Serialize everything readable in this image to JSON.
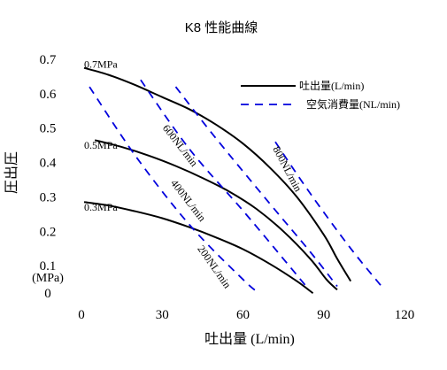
{
  "chart_data": {
    "type": "line",
    "title": "K8 性能曲線",
    "xlabel": "吐出量 (L/min)",
    "ylabel": "圧出圧",
    "ylabel_unit": "(MPa)",
    "xlim": [
      0,
      120
    ],
    "ylim": [
      0,
      0.7
    ],
    "xticks": [
      "0",
      "30",
      "60",
      "90",
      "120"
    ],
    "yticks": [
      "0",
      "0.1",
      "0.2",
      "0.3",
      "0.4",
      "0.5",
      "0.6",
      "0.7"
    ],
    "legend": [
      {
        "label": "吐出量(L/min)",
        "style": "solid"
      },
      {
        "label": "空気消費量(NL/min)",
        "style": "dashed"
      }
    ],
    "colors": {
      "solid": "#000000",
      "dashed": "#0000dd"
    },
    "series": [
      {
        "name": "0.7MPa",
        "style": "solid",
        "x": [
          1,
          10,
          20,
          30,
          40,
          50,
          60,
          70,
          80,
          90,
          95,
          100
        ],
        "y": [
          0.675,
          0.655,
          0.625,
          0.59,
          0.555,
          0.51,
          0.455,
          0.385,
          0.3,
          0.19,
          0.12,
          0.055
        ]
      },
      {
        "name": "0.5MPa",
        "style": "solid",
        "x": [
          5,
          15,
          25,
          35,
          45,
          55,
          65,
          75,
          85,
          91,
          95
        ],
        "y": [
          0.465,
          0.445,
          0.42,
          0.39,
          0.355,
          0.315,
          0.265,
          0.2,
          0.12,
          0.06,
          0.03
        ]
      },
      {
        "name": "0.3MPa",
        "style": "solid",
        "x": [
          1,
          10,
          20,
          30,
          40,
          50,
          60,
          70,
          80,
          86
        ],
        "y": [
          0.285,
          0.275,
          0.258,
          0.238,
          0.212,
          0.182,
          0.148,
          0.105,
          0.055,
          0.02
        ]
      },
      {
        "name": "200NL/min",
        "style": "dashed",
        "x": [
          3,
          20,
          40,
          60,
          66
        ],
        "y": [
          0.62,
          0.42,
          0.22,
          0.06,
          0.02
        ]
      },
      {
        "name": "400NL/min",
        "style": "dashed",
        "x": [
          22,
          40,
          60,
          75,
          84
        ],
        "y": [
          0.64,
          0.44,
          0.26,
          0.12,
          0.035
        ]
      },
      {
        "name": "600NL/min",
        "style": "dashed",
        "x": [
          35,
          50,
          70,
          85,
          95
        ],
        "y": [
          0.62,
          0.47,
          0.28,
          0.14,
          0.04
        ]
      },
      {
        "name": "800NL/min",
        "style": "dashed",
        "x": [
          72,
          85,
          100,
          112
        ],
        "y": [
          0.46,
          0.31,
          0.15,
          0.035
        ]
      }
    ],
    "annotations": [
      {
        "text": "0.7MPa",
        "x": 1,
        "y": 0.675
      },
      {
        "text": "0.5MPa",
        "x": 1,
        "y": 0.44
      },
      {
        "text": "0.3MPa",
        "x": 1,
        "y": 0.26
      },
      {
        "text": "200NL/min",
        "x": 43,
        "y": 0.15,
        "rotate": 55
      },
      {
        "text": "400NL/min",
        "x": 33,
        "y": 0.34,
        "rotate": 52
      },
      {
        "text": "600NL/min",
        "x": 30,
        "y": 0.5,
        "rotate": 52
      },
      {
        "text": "800NL/min",
        "x": 71,
        "y": 0.44,
        "rotate": 62
      }
    ]
  }
}
